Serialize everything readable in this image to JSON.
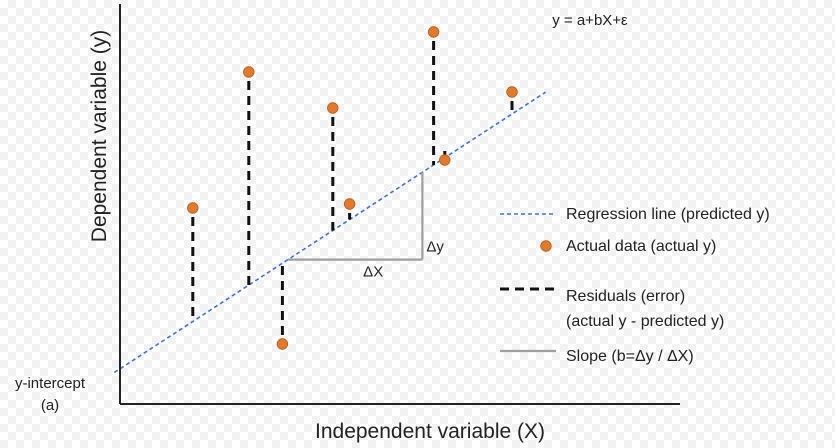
{
  "title": "",
  "xlabel": "Independent variable (X)",
  "ylabel": "Dependent variable (y)",
  "equation": "y = a+bX+ε",
  "y_intercept_label": [
    "y-intercept",
    "(a)"
  ],
  "delta_x_label": "ΔX",
  "delta_y_label": "Δy",
  "legend": {
    "items": [
      {
        "kind": "dashed-blue-line",
        "lines": [
          "Regression line (predicted y)"
        ]
      },
      {
        "kind": "orange-dot",
        "lines": [
          "Actual data (actual y)"
        ]
      },
      {
        "kind": "black-dash",
        "lines": [
          "Residuals (error)",
          "(actual y - predicted y)"
        ]
      },
      {
        "kind": "gray-line",
        "lines": [
          "Slope (b=Δy / ΔX)"
        ]
      }
    ]
  },
  "colors": {
    "regression": "#4472c4",
    "point_fill": "#e07a2e",
    "point_stroke": "#b35a16",
    "residual": "#111111",
    "slope": "#9e9e9e",
    "axis": "#222222"
  },
  "chart_data": {
    "type": "scatter",
    "xlim": [
      0,
      10
    ],
    "ylim": [
      0,
      10
    ],
    "regression": {
      "intercept": 0.88,
      "slope": 0.91
    },
    "points": [
      {
        "x": 1.3,
        "y": 4.9
      },
      {
        "x": 2.3,
        "y": 8.3
      },
      {
        "x": 2.9,
        "y": 1.5
      },
      {
        "x": 3.8,
        "y": 7.4
      },
      {
        "x": 4.1,
        "y": 5.0
      },
      {
        "x": 5.6,
        "y": 9.3
      },
      {
        "x": 5.8,
        "y": 6.1
      },
      {
        "x": 7.0,
        "y": 7.8
      }
    ],
    "slope_triangle": {
      "x_start": 3.0,
      "x_end": 5.4
    }
  }
}
